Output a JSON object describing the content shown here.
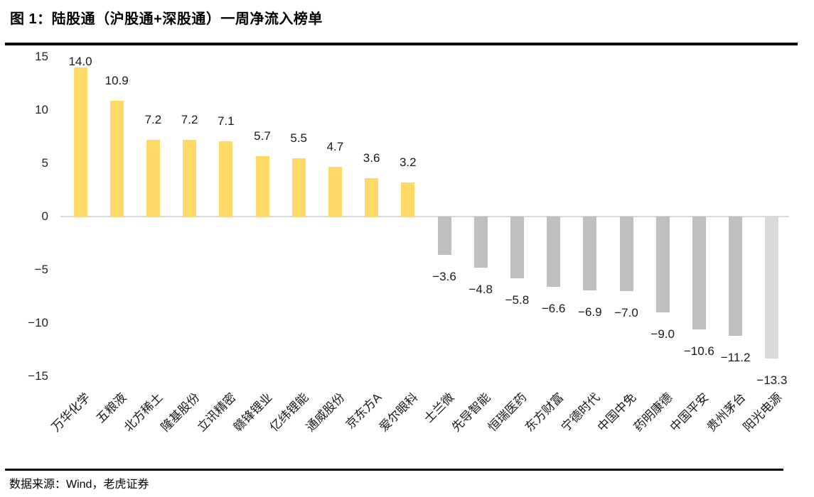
{
  "title": "图 1：陆股通（沪股通+深股通）一周净流入榜单",
  "footer": {
    "source_label": "数据来源：Wind，老虎证券"
  },
  "chart_data": {
    "type": "bar",
    "title": "图 1：陆股通（沪股通+深股通）一周净流入榜单",
    "categories": [
      "万华化学",
      "五粮液",
      "北方稀土",
      "隆基股份",
      "立讯精密",
      "赣锋锂业",
      "亿纬锂能",
      "通威股份",
      "京东方A",
      "爱尔眼科",
      "士兰微",
      "先导智能",
      "恒瑞医药",
      "东方财富",
      "宁德时代",
      "中国中免",
      "药明康德",
      "中国平安",
      "贵州茅台",
      "阳光电源"
    ],
    "values": [
      14.0,
      10.9,
      7.2,
      7.2,
      7.1,
      5.7,
      5.5,
      4.7,
      3.6,
      3.2,
      -3.6,
      -4.8,
      -5.8,
      -6.6,
      -6.9,
      -7.0,
      -9.0,
      -10.6,
      -11.2,
      -13.3
    ],
    "bar_colors": [
      "#FFD966",
      "#FFD966",
      "#FFD966",
      "#FFD966",
      "#FFD966",
      "#FFD966",
      "#FFD966",
      "#FFD966",
      "#FFD966",
      "#FFD966",
      "#BFBFBF",
      "#BFBFBF",
      "#BFBFBF",
      "#BFBFBF",
      "#BFBFBF",
      "#BFBFBF",
      "#BFBFBF",
      "#BFBFBF",
      "#BFBFBF",
      "#D9D9D9"
    ],
    "positive_color": "#FFD966",
    "negative_color": "#BFBFBF",
    "last_bar_color": "#D9D9D9",
    "axis_line_color": "#D9D9D9",
    "yticks": [
      15,
      10,
      5,
      0,
      -5,
      -10,
      -15
    ],
    "ylim": [
      -15,
      15
    ],
    "xlabel": "",
    "ylabel": "",
    "grid": false,
    "legend": null,
    "data_labels": true,
    "category_label_rotation_deg": -45
  }
}
